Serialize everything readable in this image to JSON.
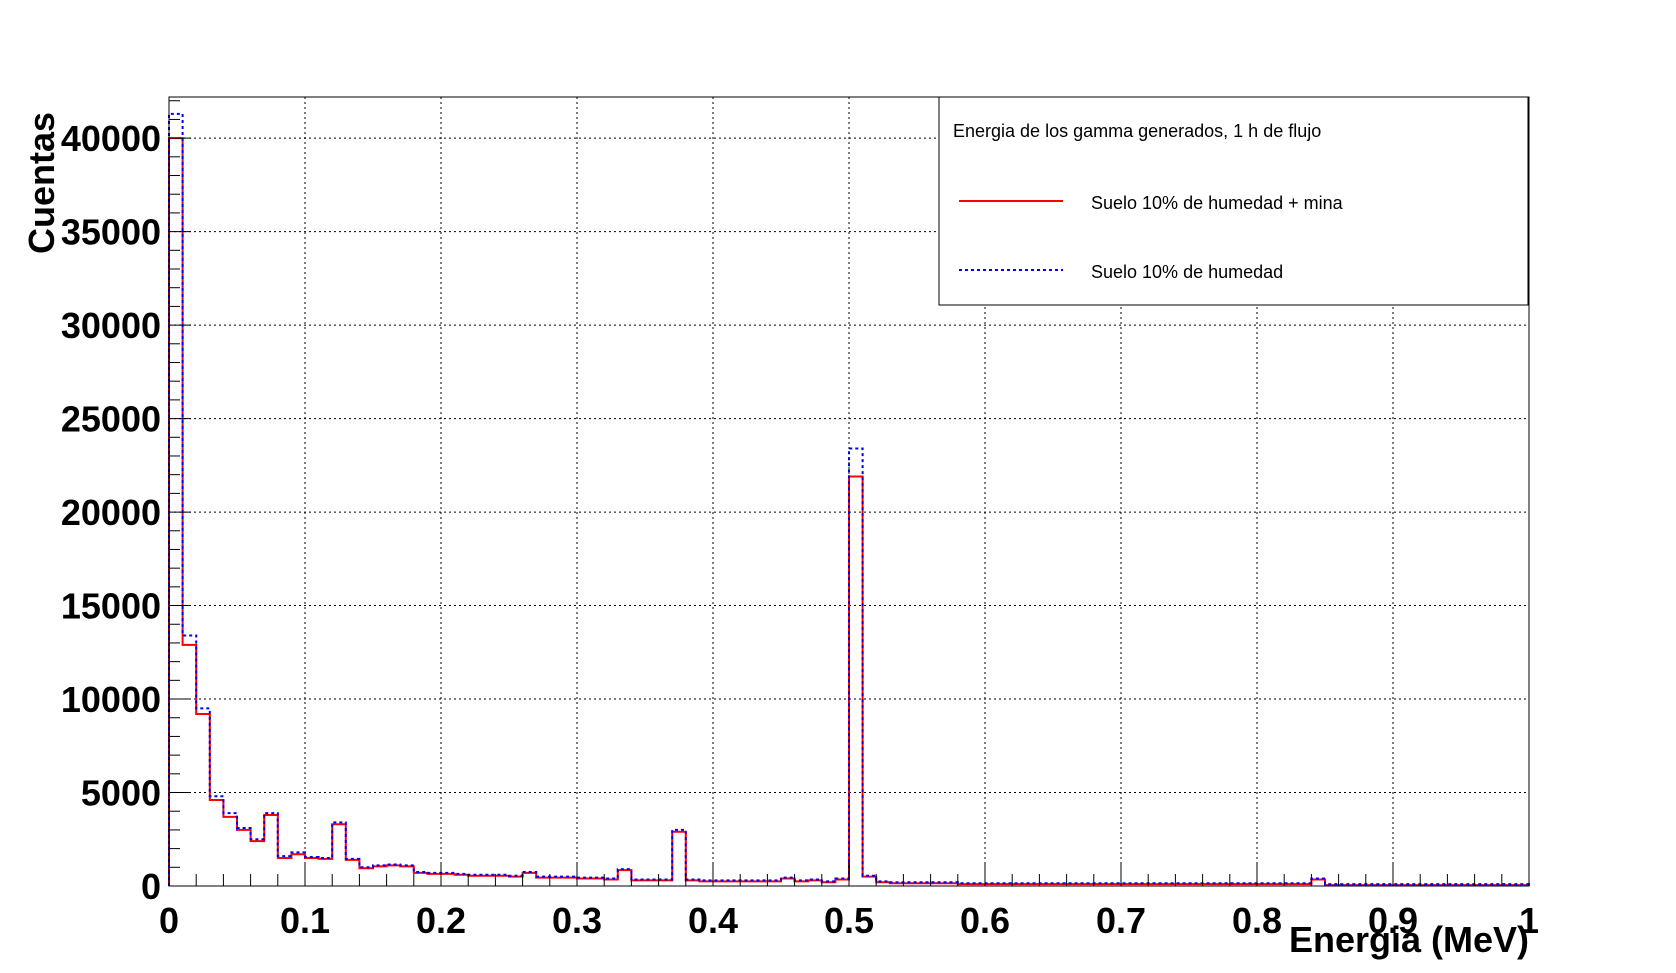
{
  "chart_data": {
    "type": "line",
    "title": "",
    "xlabel": "Energia (MeV)",
    "ylabel": "Cuentas",
    "xlim": [
      0,
      1
    ],
    "ylim": [
      0,
      42200
    ],
    "grid": true,
    "legend_placement": "top-right",
    "x_ticks": [
      "0",
      "0.1",
      "0.2",
      "0.3",
      "0.4",
      "0.5",
      "0.6",
      "0.7",
      "0.8",
      "0.9",
      "1"
    ],
    "y_ticks": [
      "0",
      "5000",
      "10000",
      "15000",
      "20000",
      "25000",
      "30000",
      "35000",
      "40000"
    ],
    "legend_title": "Energia de los gamma generados, 1 h de flujo",
    "bin_edges": [
      0,
      0.01,
      0.02,
      0.03,
      0.04,
      0.05,
      0.06,
      0.07,
      0.08,
      0.09,
      0.1,
      0.11,
      0.12,
      0.13,
      0.14,
      0.15,
      0.16,
      0.17,
      0.18,
      0.19,
      0.2,
      0.21,
      0.22,
      0.23,
      0.24,
      0.25,
      0.26,
      0.27,
      0.28,
      0.29,
      0.3,
      0.31,
      0.32,
      0.33,
      0.34,
      0.35,
      0.36,
      0.37,
      0.38,
      0.39,
      0.4,
      0.41,
      0.42,
      0.43,
      0.44,
      0.45,
      0.46,
      0.47,
      0.48,
      0.49,
      0.5,
      0.51,
      0.52,
      0.53,
      0.54,
      0.55,
      0.56,
      0.57,
      0.58,
      0.59,
      0.6,
      0.61,
      0.62,
      0.63,
      0.64,
      0.65,
      0.66,
      0.67,
      0.68,
      0.69,
      0.7,
      0.71,
      0.72,
      0.73,
      0.74,
      0.75,
      0.76,
      0.77,
      0.78,
      0.79,
      0.8,
      0.81,
      0.82,
      0.83,
      0.84,
      0.85,
      0.86,
      0.87,
      0.88,
      0.89,
      0.9,
      0.91,
      0.92,
      0.93,
      0.94,
      0.95,
      0.96,
      0.97,
      0.98,
      0.99,
      1.0
    ],
    "series": [
      {
        "name": "Suelo 10% de humedad + mina",
        "color": "#ff0000",
        "style": "solid",
        "values": [
          40000,
          12900,
          9200,
          4600,
          3700,
          3000,
          2400,
          3800,
          1500,
          1700,
          1500,
          1450,
          3300,
          1400,
          950,
          1050,
          1100,
          1050,
          700,
          650,
          650,
          600,
          550,
          550,
          550,
          500,
          700,
          450,
          450,
          450,
          400,
          400,
          350,
          850,
          300,
          300,
          300,
          2900,
          300,
          250,
          250,
          250,
          250,
          250,
          250,
          400,
          250,
          300,
          200,
          350,
          21900,
          500,
          200,
          150,
          150,
          150,
          150,
          150,
          100,
          100,
          100,
          100,
          100,
          100,
          100,
          100,
          100,
          100,
          100,
          100,
          100,
          100,
          100,
          100,
          100,
          100,
          100,
          100,
          100,
          100,
          100,
          100,
          100,
          100,
          350,
          50,
          50,
          50,
          50,
          50,
          50,
          50,
          50,
          50,
          50,
          50,
          50,
          50,
          50,
          50
        ]
      },
      {
        "name": "Suelo 10% de humedad",
        "color": "#0000ff",
        "style": "dotted",
        "values": [
          41300,
          13400,
          9500,
          4800,
          3900,
          3100,
          2500,
          3900,
          1600,
          1800,
          1550,
          1500,
          3400,
          1450,
          1000,
          1100,
          1150,
          1100,
          750,
          700,
          700,
          650,
          600,
          600,
          600,
          550,
          750,
          500,
          500,
          500,
          450,
          450,
          400,
          900,
          350,
          350,
          350,
          3000,
          350,
          300,
          300,
          300,
          300,
          300,
          300,
          450,
          300,
          350,
          250,
          400,
          23400,
          550,
          250,
          200,
          200,
          200,
          200,
          200,
          150,
          150,
          150,
          150,
          150,
          150,
          150,
          150,
          150,
          150,
          150,
          150,
          150,
          150,
          150,
          150,
          150,
          150,
          150,
          150,
          150,
          150,
          150,
          150,
          150,
          150,
          400,
          100,
          100,
          100,
          100,
          100,
          100,
          100,
          100,
          100,
          100,
          100,
          100,
          100,
          100,
          100
        ]
      }
    ]
  }
}
